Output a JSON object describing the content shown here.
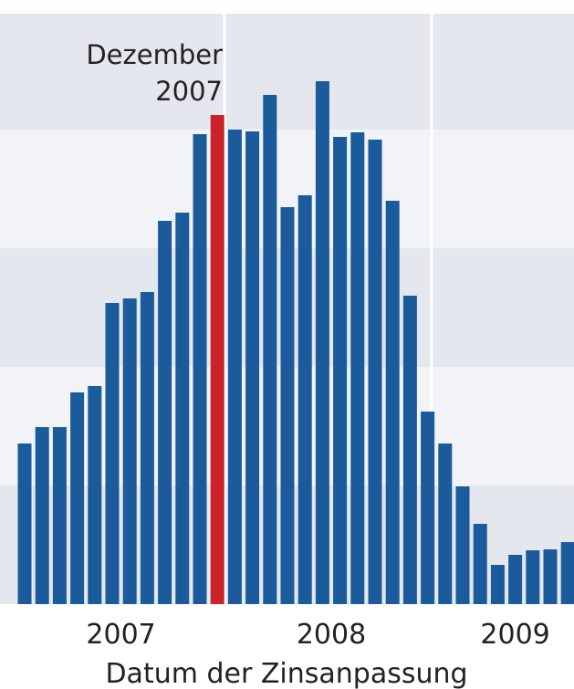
{
  "chart_data": {
    "type": "bar",
    "annotation": [
      "Dezember",
      "2007"
    ],
    "categories": [
      null,
      null,
      null,
      null,
      null,
      null,
      null,
      null,
      null,
      null,
      null,
      null,
      null,
      null,
      null,
      null,
      null,
      null,
      null,
      null,
      null,
      null,
      null,
      null,
      null,
      null,
      null,
      null,
      null,
      null,
      null,
      null
    ],
    "values": [
      176,
      194,
      194,
      232,
      239,
      330,
      335,
      342,
      420,
      429,
      515,
      536,
      520,
      518,
      558,
      435,
      448,
      573,
      512,
      517,
      509,
      442,
      338,
      211,
      176,
      129,
      88,
      43,
      54,
      59,
      60,
      68
    ],
    "color": "#1b5b9b",
    "highlight_index": 11,
    "highlight_color": "#cc2229",
    "ylim": [
      0,
      647
    ],
    "year_labels": [
      "2007",
      "2008",
      "2009"
    ],
    "x_label": "Datum der Zinsanpassung"
  }
}
